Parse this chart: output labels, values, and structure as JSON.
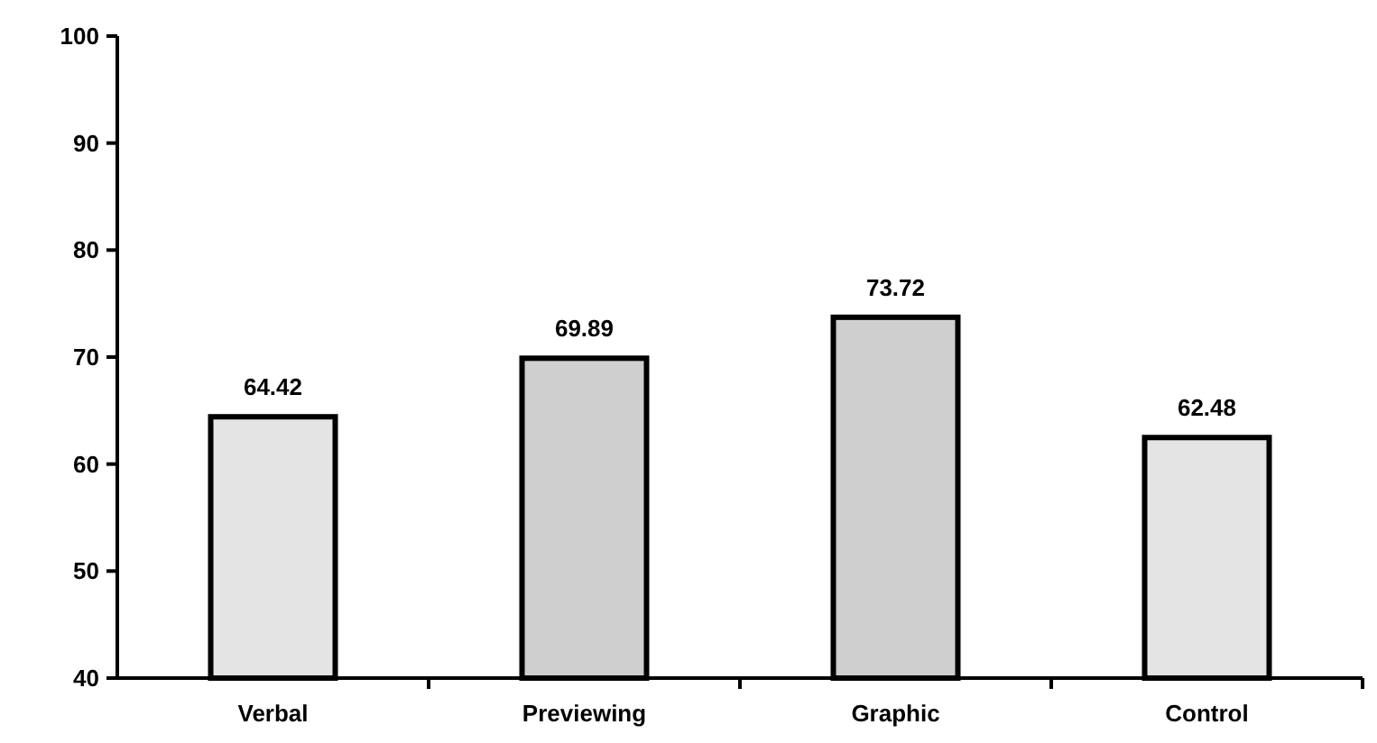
{
  "chart_data": {
    "type": "bar",
    "categories": [
      "Verbal",
      "Previewing",
      "Graphic",
      "Control"
    ],
    "values": [
      64.42,
      69.89,
      73.72,
      62.48
    ],
    "colors": [
      "#e4e4e4",
      "#cfcfcf",
      "#cfcfcf",
      "#e4e4e4"
    ],
    "ylim": [
      40,
      100
    ],
    "yticks": [
      40,
      50,
      60,
      70,
      80,
      90,
      100
    ],
    "data_labels": true,
    "grid": false
  }
}
